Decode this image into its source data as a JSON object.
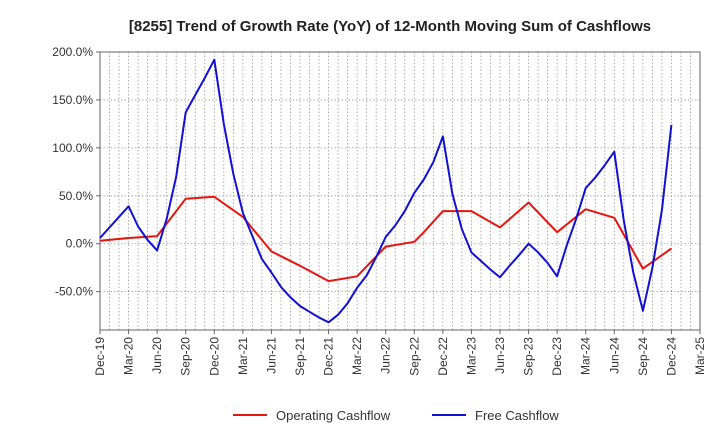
{
  "chart_data": {
    "type": "line",
    "title": "[8255]  Trend of Growth Rate (YoY) of 12-Month Moving Sum of Cashflows",
    "xlabel": "",
    "ylabel": "",
    "ylim": [
      -90,
      200
    ],
    "yticks": [
      200,
      150,
      100,
      50,
      0,
      -50
    ],
    "ytick_labels": [
      "200.0%",
      "150.0%",
      "100.0%",
      "50.0%",
      "0.0%",
      "-50.0%"
    ],
    "x_tick_labels": [
      "Dec-19",
      "Mar-20",
      "Jun-20",
      "Sep-20",
      "Dec-20",
      "Mar-21",
      "Jun-21",
      "Sep-21",
      "Dec-21",
      "Mar-22",
      "Jun-22",
      "Sep-22",
      "Dec-22",
      "Mar-23",
      "Jun-23",
      "Sep-23",
      "Dec-23",
      "Mar-24",
      "Jun-24",
      "Sep-24",
      "Dec-24",
      "Mar-25"
    ],
    "months": [
      "Dec-19",
      "Jan-20",
      "Feb-20",
      "Mar-20",
      "Apr-20",
      "May-20",
      "Jun-20",
      "Jul-20",
      "Aug-20",
      "Sep-20",
      "Oct-20",
      "Nov-20",
      "Dec-20",
      "Jan-21",
      "Feb-21",
      "Mar-21",
      "Apr-21",
      "May-21",
      "Jun-21",
      "Jul-21",
      "Aug-21",
      "Sep-21",
      "Oct-21",
      "Nov-21",
      "Dec-21",
      "Jan-22",
      "Feb-22",
      "Mar-22",
      "Apr-22",
      "May-22",
      "Jun-22",
      "Jul-22",
      "Aug-22",
      "Sep-22",
      "Oct-22",
      "Nov-22",
      "Dec-22",
      "Jan-23",
      "Feb-23",
      "Mar-23",
      "Apr-23",
      "May-23",
      "Jun-23",
      "Jul-23",
      "Aug-23",
      "Sep-23",
      "Oct-23",
      "Nov-23",
      "Dec-23",
      "Jan-24",
      "Feb-24",
      "Mar-24",
      "Apr-24",
      "May-24",
      "Jun-24",
      "Jul-24",
      "Aug-24",
      "Sep-24",
      "Oct-24",
      "Nov-24",
      "Dec-24",
      "Jan-25",
      "Feb-25",
      "Mar-25"
    ],
    "grid": true,
    "legend_position": "bottom",
    "series": [
      {
        "name": "Operating Cashflow",
        "color": "#e8150e",
        "points": [
          [
            "Dec-19",
            3
          ],
          [
            "Mar-20",
            6
          ],
          [
            "Jun-20",
            8
          ],
          [
            "Sep-20",
            47
          ],
          [
            "Dec-20",
            49
          ],
          [
            "Mar-21",
            28
          ],
          [
            "Jun-21",
            -8
          ],
          [
            "Sep-21",
            -23
          ],
          [
            "Dec-21",
            -39
          ],
          [
            "Mar-22",
            -34
          ],
          [
            "Jun-22",
            -3
          ],
          [
            "Sep-22",
            2
          ],
          [
            "Oct-22",
            12
          ],
          [
            "Nov-22",
            23
          ],
          [
            "Dec-22",
            34
          ],
          [
            "Mar-23",
            34
          ],
          [
            "Jun-23",
            17
          ],
          [
            "Sep-23",
            43
          ],
          [
            "Dec-23",
            12
          ],
          [
            "Mar-24",
            36
          ],
          [
            "Jun-24",
            27
          ],
          [
            "Sep-24",
            -26
          ],
          [
            "Dec-24",
            -5
          ]
        ]
      },
      {
        "name": "Free Cashflow",
        "color": "#1010d8",
        "points": [
          [
            "Dec-19",
            6
          ],
          [
            "Jan-20",
            17
          ],
          [
            "Feb-20",
            28
          ],
          [
            "Mar-20",
            39
          ],
          [
            "Apr-20",
            18
          ],
          [
            "May-20",
            4
          ],
          [
            "Jun-20",
            -7
          ],
          [
            "Jul-20",
            26
          ],
          [
            "Aug-20",
            70
          ],
          [
            "Sep-20",
            137
          ],
          [
            "Oct-20",
            155
          ],
          [
            "Nov-20",
            173
          ],
          [
            "Dec-20",
            192
          ],
          [
            "Jan-21",
            125
          ],
          [
            "Feb-21",
            73
          ],
          [
            "Mar-21",
            32
          ],
          [
            "Apr-21",
            8
          ],
          [
            "May-21",
            -16
          ],
          [
            "Jun-21",
            -30
          ],
          [
            "Jul-21",
            -45
          ],
          [
            "Aug-21",
            -56
          ],
          [
            "Sep-21",
            -65
          ],
          [
            "Oct-21",
            -71
          ],
          [
            "Nov-21",
            -77
          ],
          [
            "Dec-21",
            -82
          ],
          [
            "Jan-22",
            -74
          ],
          [
            "Feb-22",
            -62
          ],
          [
            "Mar-22",
            -46
          ],
          [
            "Apr-22",
            -33
          ],
          [
            "May-22",
            -14
          ],
          [
            "Jun-22",
            7
          ],
          [
            "Jul-22",
            19
          ],
          [
            "Aug-22",
            34
          ],
          [
            "Sep-22",
            53
          ],
          [
            "Oct-22",
            67
          ],
          [
            "Nov-22",
            85
          ],
          [
            "Dec-22",
            112
          ],
          [
            "Jan-23",
            52
          ],
          [
            "Feb-23",
            15
          ],
          [
            "Mar-23",
            -9
          ],
          [
            "Apr-23",
            -18
          ],
          [
            "May-23",
            -27
          ],
          [
            "Jun-23",
            -35
          ],
          [
            "Jul-23",
            -23
          ],
          [
            "Aug-23",
            -12
          ],
          [
            "Sep-23",
            0
          ],
          [
            "Oct-23",
            -9
          ],
          [
            "Nov-23",
            -20
          ],
          [
            "Dec-23",
            -34
          ],
          [
            "Jan-24",
            -2
          ],
          [
            "Feb-24",
            26
          ],
          [
            "Mar-24",
            58
          ],
          [
            "Apr-24",
            69
          ],
          [
            "May-24",
            82
          ],
          [
            "Jun-24",
            96
          ],
          [
            "Jul-24",
            24
          ],
          [
            "Aug-24",
            -30
          ],
          [
            "Sep-24",
            -70
          ],
          [
            "Oct-24",
            -25
          ],
          [
            "Nov-24",
            35
          ],
          [
            "Dec-24",
            124
          ]
        ]
      }
    ]
  }
}
